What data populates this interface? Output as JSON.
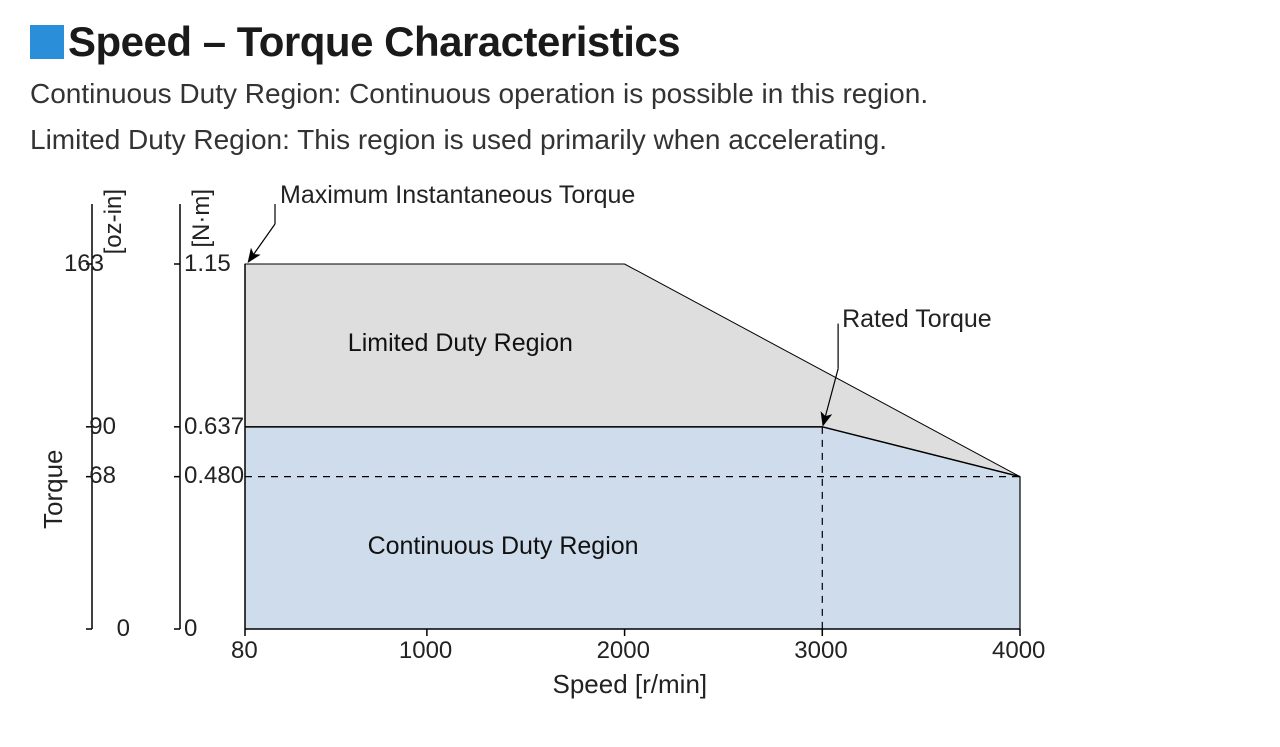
{
  "title": "Speed – Torque Characteristics",
  "bullet_color": "#2b8ed9",
  "desc1": "Continuous Duty Region: Continuous operation is possible in this region.",
  "desc2": "Limited Duty Region: This region is used primarily when accelerating.",
  "chart": {
    "type": "area",
    "background_color": "#ffffff",
    "border_color": "#000000",
    "continuous_fill": "#cedcec",
    "limited_fill": "#dedede",
    "dash_pattern": "7 6",
    "line_width_main": 1.5,
    "line_width_thin": 1,
    "x_axis": {
      "label": "Speed [r/min]",
      "min": 80,
      "max": 4000,
      "ticks": [
        80,
        1000,
        2000,
        3000,
        4000
      ]
    },
    "y_axis": {
      "label": "Torque",
      "unit_left": "[oz-in]",
      "unit_right": "[N·m]",
      "ticks_left": [
        0,
        68,
        90,
        163
      ],
      "ticks_right": [
        0,
        "0.480",
        "0.637",
        "1.15"
      ],
      "max_nm": 1.15
    },
    "regions": {
      "limited": {
        "label": "Limited Duty Region",
        "points_speed": [
          80,
          2000,
          4000,
          3000,
          80
        ],
        "points_torque_nm": [
          1.15,
          1.15,
          0.48,
          0.637,
          0.637
        ]
      },
      "continuous": {
        "label": "Continuous Duty Region",
        "points_speed": [
          80,
          3000,
          4000,
          4000,
          80
        ],
        "points_torque_nm": [
          0.637,
          0.637,
          0.48,
          0,
          0
        ]
      }
    },
    "annotations": {
      "max_torque": "Maximum Instantaneous Torque",
      "rated_torque": "Rated Torque"
    },
    "dash_lines": {
      "h_at_nm": 0.48,
      "h_to_speed": 4000,
      "v_at_speed": 3000,
      "v_to_nm": 0.637
    }
  }
}
